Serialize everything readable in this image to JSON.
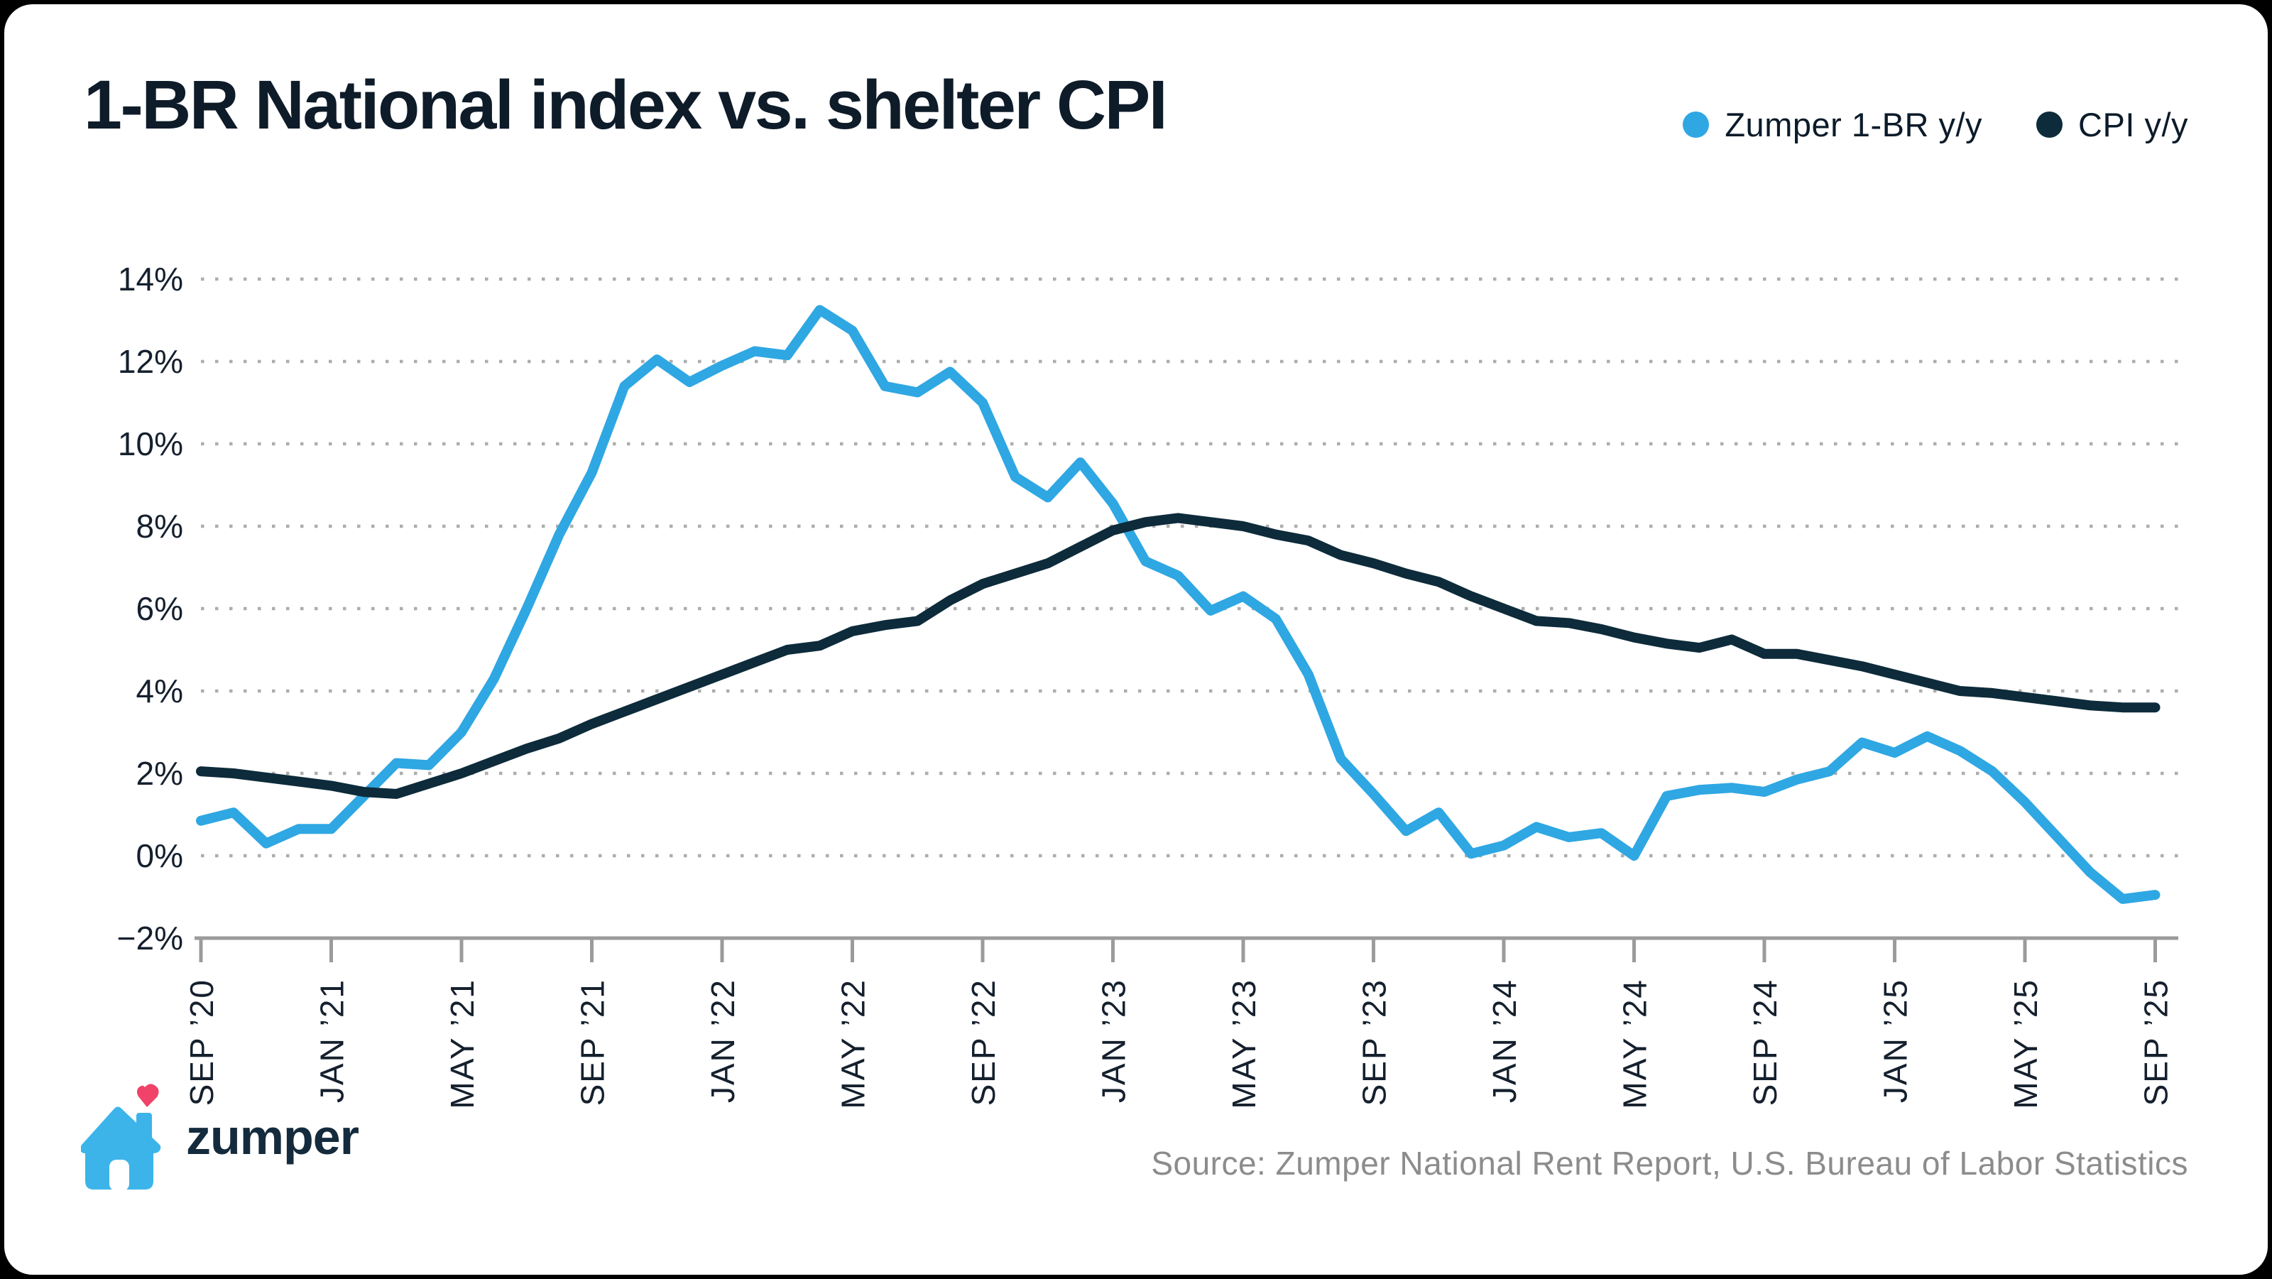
{
  "title": "1-BR National index vs. shelter CPI",
  "legend": [
    {
      "label": "Zumper 1-BR y/y",
      "color": "#2FA7E3"
    },
    {
      "label": "CPI y/y",
      "color": "#0D2B3A"
    }
  ],
  "footer": {
    "logo_text": "zumper",
    "source": "Source: Zumper National Rent Report, U.S. Bureau of Labor Statistics"
  },
  "logo_colors": {
    "house": "#3CB4EA",
    "heart": "#F0436A",
    "door": "#FFFFFF"
  },
  "chart_data": {
    "type": "line",
    "title": "1-BR National index vs. shelter CPI",
    "xlabel": "",
    "ylabel": "",
    "ylim": [
      -2,
      14
    ],
    "grid": "dotted-horizontal",
    "legend_position": "top-right",
    "y_tick_values": [
      14,
      12,
      10,
      8,
      6,
      4,
      2,
      0,
      -2
    ],
    "y_tick_labels": [
      "14%",
      "12%",
      "10%",
      "8%",
      "6%",
      "4%",
      "2%",
      "0%",
      "−2%"
    ],
    "x_tick_every_n_months": 4,
    "x_tick_labels": [
      "SEP ’20",
      "JAN ’21",
      "MAY ’21",
      "SEP ’21",
      "JAN ’22",
      "MAY ’22",
      "SEP ’22",
      "JAN ’23",
      "MAY ’23",
      "SEP ’23",
      "JAN ’24",
      "MAY ’24",
      "SEP ’24",
      "JAN ’25",
      "MAY ’25",
      "SEP ’25"
    ],
    "x": [
      "2020-09",
      "2020-10",
      "2020-11",
      "2020-12",
      "2021-01",
      "2021-02",
      "2021-03",
      "2021-04",
      "2021-05",
      "2021-06",
      "2021-07",
      "2021-08",
      "2021-09",
      "2021-10",
      "2021-11",
      "2021-12",
      "2022-01",
      "2022-02",
      "2022-03",
      "2022-04",
      "2022-05",
      "2022-06",
      "2022-07",
      "2022-08",
      "2022-09",
      "2022-10",
      "2022-11",
      "2022-12",
      "2023-01",
      "2023-02",
      "2023-03",
      "2023-04",
      "2023-05",
      "2023-06",
      "2023-07",
      "2023-08",
      "2023-09",
      "2023-10",
      "2023-11",
      "2023-12",
      "2024-01",
      "2024-02",
      "2024-03",
      "2024-04",
      "2024-05",
      "2024-06",
      "2024-07",
      "2024-08",
      "2024-09",
      "2024-10",
      "2024-11",
      "2024-12",
      "2025-01",
      "2025-02",
      "2025-03",
      "2025-04",
      "2025-05",
      "2025-06",
      "2025-07",
      "2025-08",
      "2025-09"
    ],
    "series": [
      {
        "name": "Zumper 1-BR y/y",
        "color": "#2FA7E3",
        "values": [
          0.85,
          1.05,
          0.3,
          0.65,
          0.65,
          1.45,
          2.25,
          2.2,
          3.0,
          4.3,
          6.0,
          7.8,
          9.3,
          11.4,
          12.05,
          11.5,
          11.9,
          12.25,
          12.15,
          13.25,
          12.75,
          11.4,
          11.25,
          11.75,
          11.0,
          9.2,
          8.7,
          9.55,
          8.55,
          7.15,
          6.8,
          5.95,
          6.3,
          5.75,
          4.4,
          2.35,
          1.5,
          0.6,
          1.05,
          0.05,
          0.25,
          0.7,
          0.45,
          0.55,
          0.0,
          1.45,
          1.6,
          1.65,
          1.55,
          1.85,
          2.05,
          2.75,
          2.5,
          2.9,
          2.55,
          2.05,
          1.3,
          0.45,
          -0.4,
          -1.05,
          -0.95
        ]
      },
      {
        "name": "CPI y/y",
        "color": "#0D2B3A",
        "values": [
          2.05,
          2.0,
          1.9,
          1.8,
          1.7,
          1.55,
          1.5,
          1.75,
          2.0,
          2.3,
          2.6,
          2.85,
          3.2,
          3.5,
          3.8,
          4.1,
          4.4,
          4.7,
          5.0,
          5.1,
          5.45,
          5.6,
          5.7,
          6.2,
          6.6,
          6.85,
          7.1,
          7.5,
          7.9,
          8.1,
          8.2,
          8.1,
          8.0,
          7.8,
          7.65,
          7.3,
          7.1,
          6.85,
          6.65,
          6.3,
          6.0,
          5.7,
          5.65,
          5.5,
          5.3,
          5.15,
          5.05,
          5.25,
          4.9,
          4.9,
          4.75,
          4.6,
          4.4,
          4.2,
          4.0,
          3.95,
          3.85,
          3.75,
          3.65,
          3.6,
          3.6
        ]
      }
    ]
  }
}
